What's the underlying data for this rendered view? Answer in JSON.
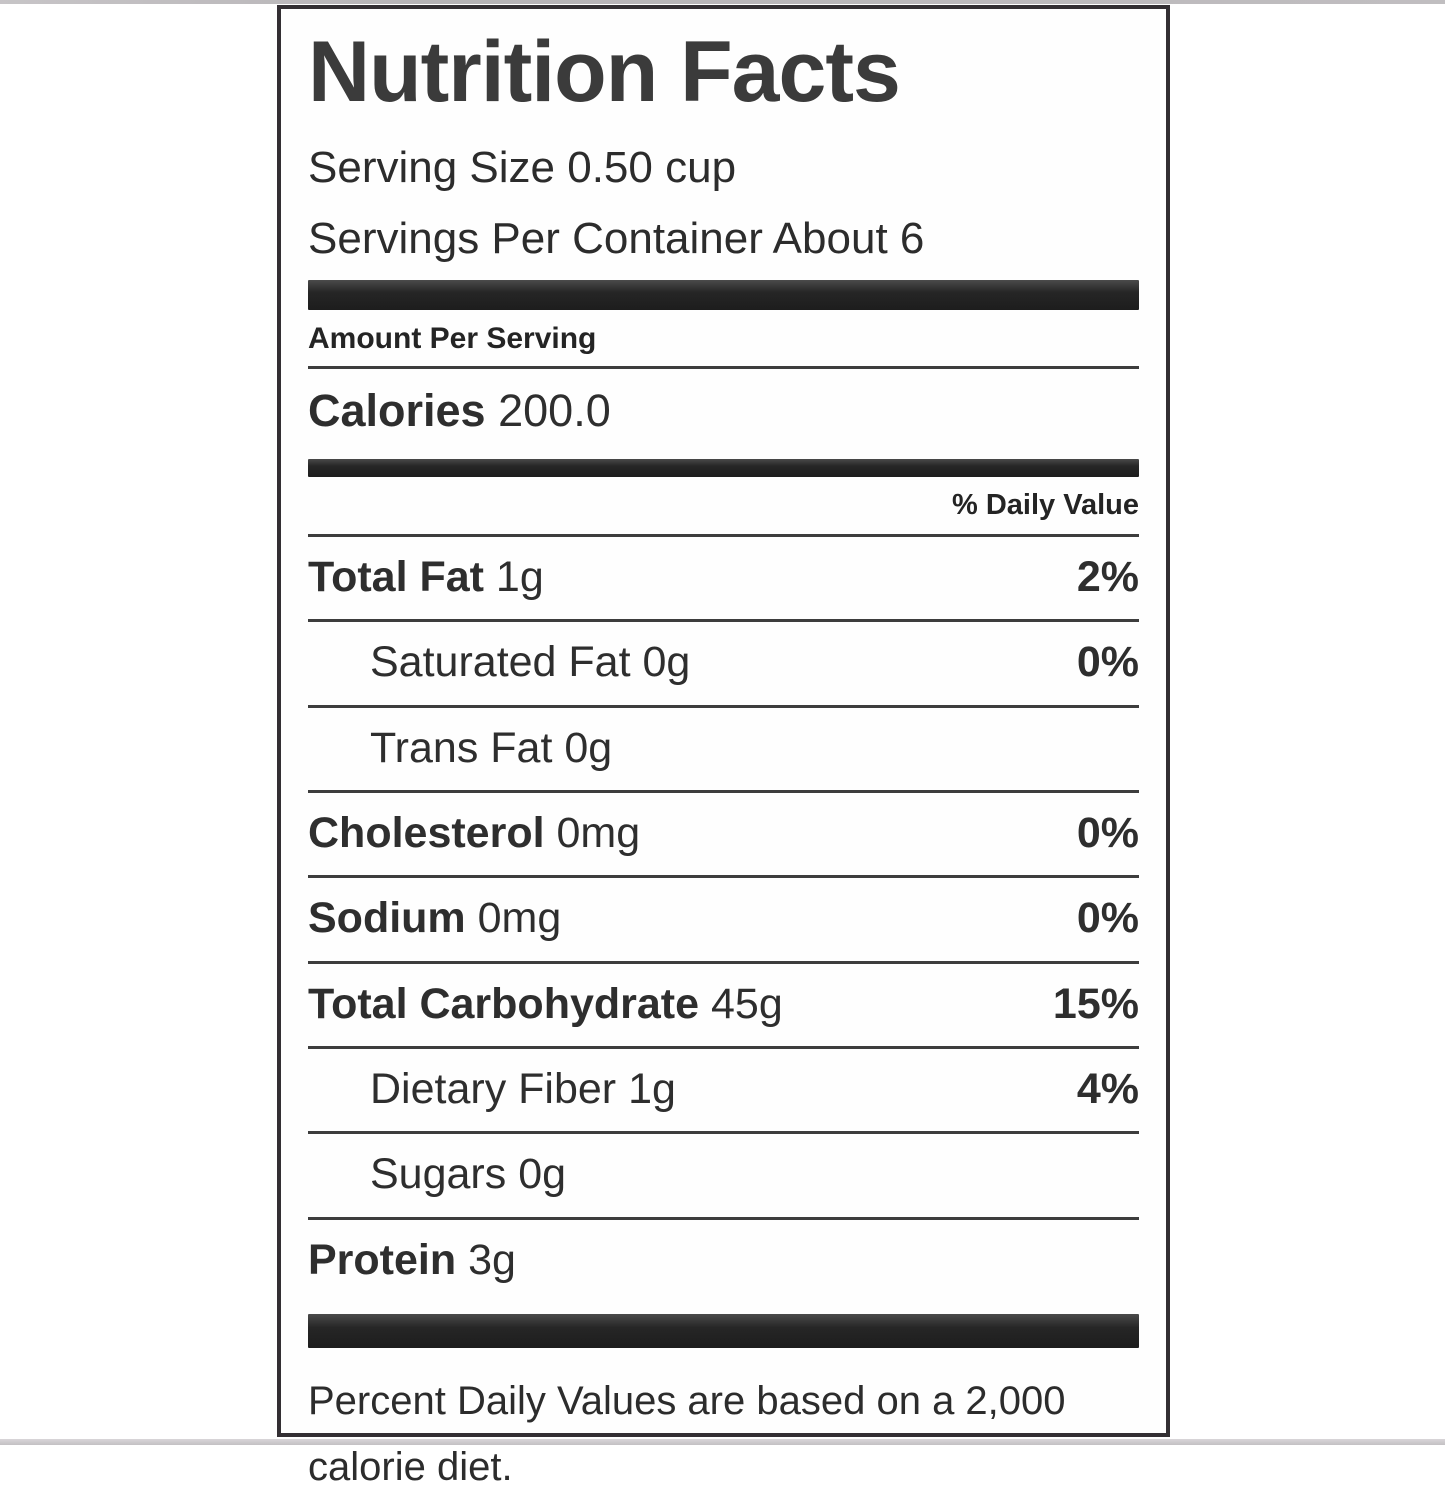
{
  "label": {
    "title": "Nutrition Facts",
    "serving_size": "Serving Size 0.50 cup",
    "servings_per_container": "Servings Per Container About 6",
    "amount_per_serving": "Amount Per Serving",
    "calories_label": "Calories",
    "calories_value": "200.0",
    "daily_value_header": "% Daily Value",
    "rows": [
      {
        "name": "Total Fat",
        "amount": "1g",
        "daily_value": "2%"
      },
      {
        "name": "Saturated Fat",
        "amount": "0g",
        "daily_value": "0%"
      },
      {
        "name": "Trans Fat",
        "amount": "0g",
        "daily_value": ""
      },
      {
        "name": "Cholesterol",
        "amount": "0mg",
        "daily_value": "0%"
      },
      {
        "name": "Sodium",
        "amount": "0mg",
        "daily_value": "0%"
      },
      {
        "name": "Total Carbohydrate",
        "amount": "45g",
        "daily_value": "15%"
      },
      {
        "name": "Dietary Fiber",
        "amount": "1g",
        "daily_value": "4%"
      },
      {
        "name": "Sugars",
        "amount": "0g",
        "daily_value": ""
      },
      {
        "name": "Protein",
        "amount": "3g",
        "daily_value": ""
      }
    ],
    "footnote": "Percent Daily Values are based on a 2,000 calorie diet.",
    "colors": {
      "text": "#2e2e2e",
      "separator_bar": "#262626",
      "border": "#332f33",
      "background": "#ffffff"
    }
  }
}
